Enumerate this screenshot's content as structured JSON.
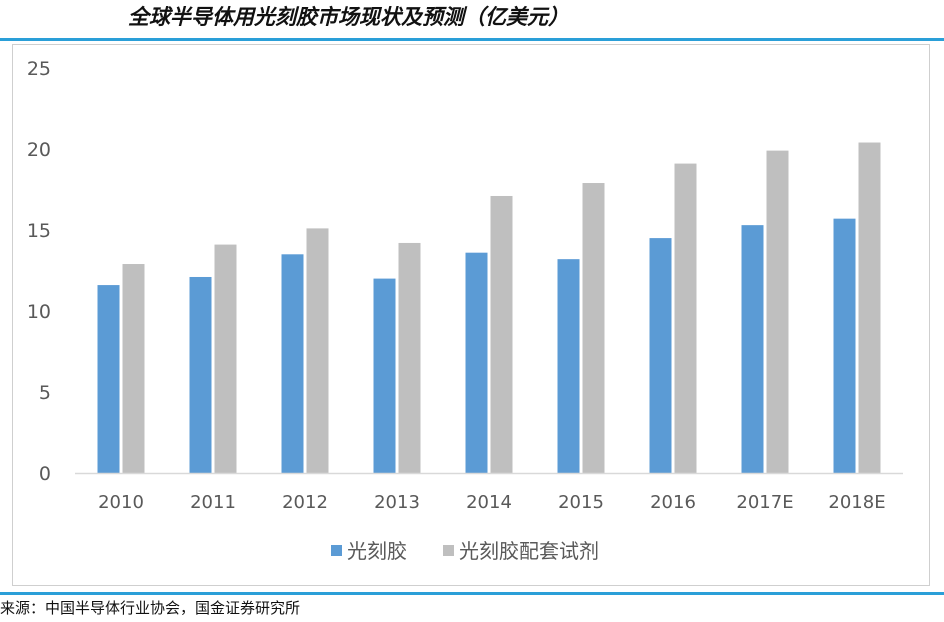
{
  "header": {
    "title": "全球半导体用光刻胶市场现状及预测（亿美元）"
  },
  "footer": {
    "source": "来源：中国半导体行业协会，国金证券研究所"
  },
  "colors": {
    "series1": "#5b9bd5",
    "series2": "#bfbfbf",
    "axis": "#d9d9d9",
    "tick_text": "#595959",
    "rule": "#2a9fd8"
  },
  "chart_data": {
    "type": "bar",
    "title": "",
    "xlabel": "",
    "ylabel": "",
    "categories": [
      "2010",
      "2011",
      "2012",
      "2013",
      "2014",
      "2015",
      "2016",
      "2017E",
      "2018E"
    ],
    "series": [
      {
        "name": "光刻胶",
        "values": [
          11.6,
          12.1,
          13.5,
          12.0,
          13.6,
          13.2,
          14.5,
          15.3,
          15.7
        ]
      },
      {
        "name": "光刻胶配套试剂",
        "values": [
          12.9,
          14.1,
          15.1,
          14.2,
          17.1,
          17.9,
          19.1,
          19.9,
          20.4
        ]
      }
    ],
    "ylim": [
      0,
      25
    ],
    "yticks": [
      0,
      5,
      10,
      15,
      20,
      25
    ],
    "grid": false,
    "legend": "bottom"
  }
}
